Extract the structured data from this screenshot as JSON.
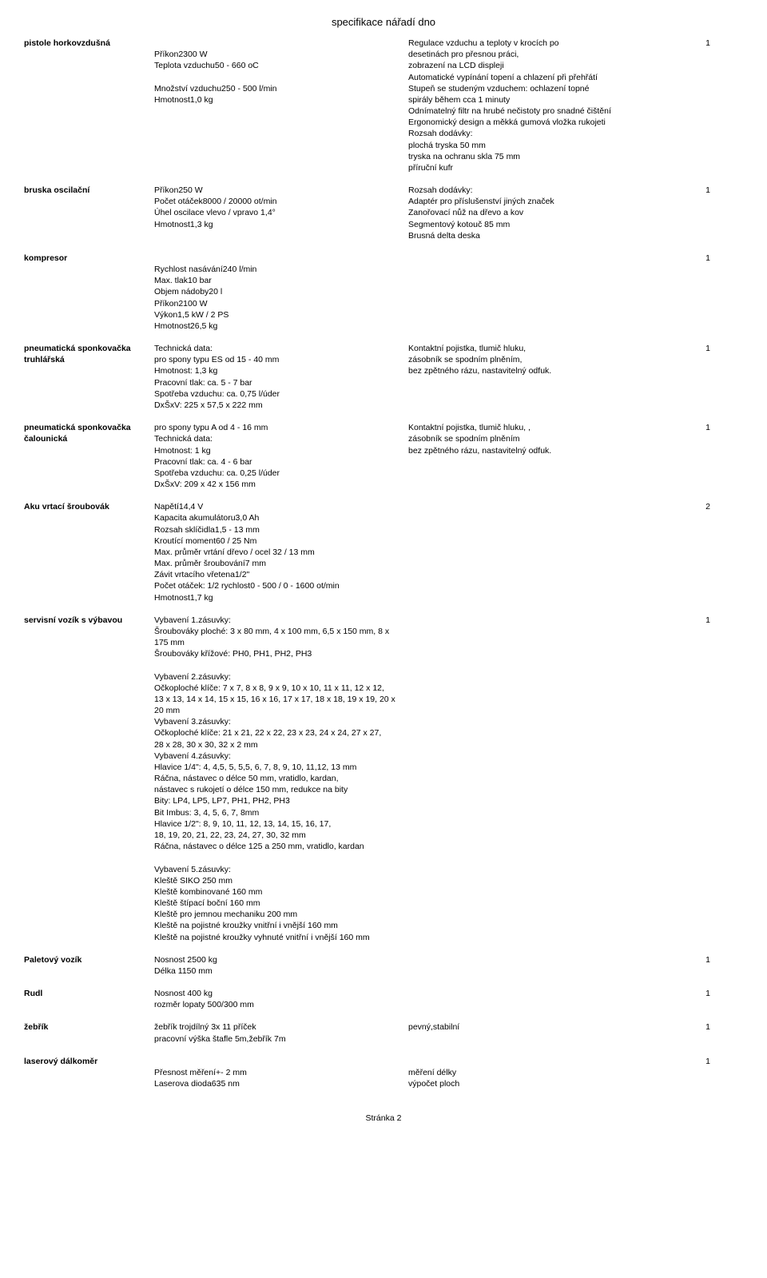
{
  "header": "specifikace nářadí dno",
  "footer": "Stránka 2",
  "items": [
    {
      "name": "pistole horkovzdušná",
      "spec": [
        "",
        "Příkon2300 W",
        "Teplota vzduchu50 - 660 oC",
        "",
        "Množství vzduchu250 - 500 l/min",
        "Hmotnost1,0 kg"
      ],
      "desc": [
        "Regulace vzduchu a teploty v krocích po",
        "desetinách pro přesnou práci,",
        "zobrazení na LCD displeji",
        "Automatické vypínání topení a chlazení při přehřátí",
        "Stupeň se studeným vzduchem: ochlazení topné",
        "spirály během cca 1 minuty",
        "Odnímatelný filtr na hrubé nečistoty pro snadné čištění",
        "Ergonomický design a měkká gumová vložka rukojeti",
        "Rozsah dodávky:",
        "plochá tryska 50 mm",
        "tryska na ochranu skla 75 mm",
        "příruční kufr"
      ],
      "qty": "1"
    },
    {
      "name": "bruska oscilační",
      "spec": [
        "Příkon250 W",
        "Počet otáček8000 / 20000 ot/min",
        "Úhel oscilace vlevo / vpravo 1,4°",
        "Hmotnost1,3 kg"
      ],
      "desc": [
        "Rozsah dodávky:",
        "Adaptér pro příslušenství jiných značek",
        "Zanořovací nůž na dřevo a kov",
        "Segmentový kotouč 85 mm",
        "Brusná delta deska"
      ],
      "qty": "1"
    },
    {
      "name": "kompresor",
      "spec": [
        "",
        "Rychlost nasávání240 l/min",
        "Max. tlak10 bar",
        "Objem nádoby20 l",
        "Příkon2100 W",
        "Výkon1,5 kW / 2 PS",
        "Hmotnost26,5 kg"
      ],
      "desc": [
        ""
      ],
      "qty": "1"
    },
    {
      "name": "pneumatická sponkovačka truhlářská",
      "spec": [
        "Technická data:",
        "pro spony typu ES od 15 - 40 mm",
        "Hmotnost: 1,3 kg",
        "Pracovní tlak: ca. 5 - 7 bar",
        "Spotřeba vzduchu: ca. 0,75 l/úder",
        "DxŠxV: 225 x 57,5 x 222 mm"
      ],
      "desc": [
        "Kontaktní pojistka, tlumič hluku,",
        " zásobník se spodním plněním,",
        "bez zpětného rázu, nastavitelný odfuk."
      ],
      "qty": "1"
    },
    {
      "name": "pneumatická sponkovačka čalounická",
      "spec": [
        "pro spony typu A od 4 - 16 mm",
        "Technická data:",
        "Hmotnost: 1 kg",
        "Pracovní tlak: ca. 4 - 6 bar",
        "Spotřeba vzduchu: ca. 0,25 l/úder",
        "DxŠxV: 209 x 42 x 156 mm"
      ],
      "desc": [
        "Kontaktní pojistka, tlumič hluku, ,",
        "zásobník se spodním plněním",
        "bez zpětného rázu, nastavitelný odfuk."
      ],
      "qty": "1"
    },
    {
      "name": "Aku vrtací šroubovák",
      "spec": [
        "Napětí14,4 V",
        "Kapacita akumulátoru3,0 Ah",
        "Rozsah sklíčidla1,5 - 13 mm",
        "Kroutící moment60 / 25 Nm",
        "Max. průměr vrtání dřevo / ocel 32 / 13 mm",
        "Max. průměr šroubování7 mm",
        "Závit vrtacího vřetena1/2\"",
        "Počet otáček: 1/2 rychlost0 - 500 / 0 - 1600 ot/min",
        "Hmotnost1,7 kg"
      ],
      "desc": [
        ""
      ],
      "qty": "2"
    },
    {
      "name": "servisní vozík s výbavou",
      "spec": [
        "Vybavení 1.zásuvky:",
        "Šroubováky ploché: 3 x 80 mm, 4 x 100 mm, 6,5 x 150 mm, 8 x 175 mm",
        "Šroubováky křížové: PH0, PH1, PH2, PH3",
        "",
        "Vybavení 2.zásuvky:",
        "Očkoploché klíče: 7 x 7, 8 x 8, 9 x 9, 10 x 10, 11 x 11, 12 x 12,",
        "13 x 13, 14 x 14, 15 x 15, 16 x 16, 17 x 17, 18 x 18, 19 x 19, 20 x 20 mm",
        "Vybavení 3.zásuvky:",
        "Očkoploché klíče: 21 x 21, 22 x 22, 23 x 23, 24 x 24, 27 x 27,",
        "28 x 28, 30 x 30, 32 x 2 mm",
        "Vybavení 4.zásuvky:",
        "Hlavice 1/4\": 4, 4,5, 5, 5,5, 6, 7, 8, 9, 10, 11,12, 13 mm",
        "Ráčna, nástavec o délce 50 mm, vratidlo, kardan,",
        "nástavec s rukojetí o délce 150 mm, redukce na bity",
        "Bity: LP4, LP5, LP7, PH1, PH2, PH3",
        "Bit Imbus: 3, 4, 5, 6, 7, 8mm",
        "Hlavice 1/2\": 8, 9, 10, 11, 12, 13, 14, 15, 16, 17,",
        "18, 19, 20, 21, 22, 23, 24, 27, 30, 32 mm",
        "Ráčna, nástavec o délce 125 a 250 mm, vratidlo, kardan",
        "",
        "Vybavení 5.zásuvky:",
        "Kleště SIKO 250 mm",
        "Kleště kombinované 160 mm",
        "Kleště štípací boční 160 mm",
        "Kleště pro jemnou mechaniku 200 mm",
        "Kleště na pojistné kroužky vnitřní i vnější 160 mm",
        "Kleště na pojistné kroužky vyhnuté vnitřní i vnější 160 mm"
      ],
      "desc": [
        ""
      ],
      "qty": "1"
    },
    {
      "name": "Paletový vozík",
      "spec": [
        "Nosnost 2500 kg",
        "Délka 1150 mm"
      ],
      "desc": [
        ""
      ],
      "qty": "1"
    },
    {
      "name": "Rudl",
      "spec": [
        "Nosnost 400 kg",
        "rozměr lopaty  500/300 mm"
      ],
      "desc": [
        ""
      ],
      "qty": "1"
    },
    {
      "name": "žebřík",
      "spec": [
        "žebřík trojdílný 3x 11 příček",
        "pracovní výška štafle 5m,žebřík 7m"
      ],
      "desc": [
        "pevný,stabilní"
      ],
      "qty": "1"
    },
    {
      "name": "laserový dálkoměr",
      "spec": [
        "",
        "Přesnost měření+- 2 mm",
        "Laserova dioda635 nm"
      ],
      "desc": [
        "",
        "měření délky",
        "výpočet ploch"
      ],
      "qty": "1"
    }
  ]
}
